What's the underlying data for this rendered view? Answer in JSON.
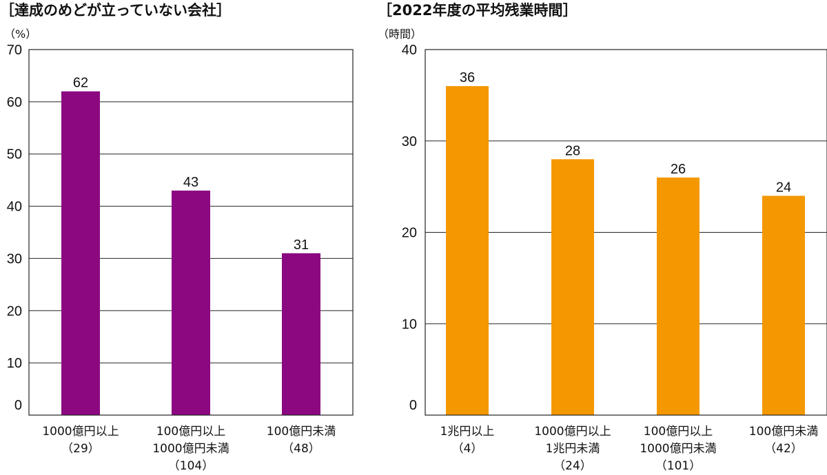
{
  "chart_data": [
    {
      "type": "bar",
      "title": "［達成のめどが立っていない会社］",
      "unit": "（%）",
      "ylim": [
        0,
        70
      ],
      "yticks": [
        0,
        10,
        20,
        30,
        40,
        50,
        60,
        70
      ],
      "grid": true,
      "color": "#8c0880",
      "categories": [
        [
          "1000億円以上",
          "（29）"
        ],
        [
          "100億円以上",
          "1000億円未満",
          "（104）"
        ],
        [
          "100億円未満",
          "（48）"
        ]
      ],
      "values": [
        62,
        43,
        31
      ]
    },
    {
      "type": "bar",
      "title": "［2022年度の平均残業時間］",
      "unit": "（時間）",
      "ylim": [
        0,
        40
      ],
      "yticks": [
        0,
        10,
        20,
        30,
        40
      ],
      "grid": true,
      "color": "#f39800",
      "categories": [
        [
          "1兆円以上",
          "（4）"
        ],
        [
          "1000億円以上",
          "1兆円未満",
          "（24）"
        ],
        [
          "100億円以上",
          "1000億円未満",
          "（101）"
        ],
        [
          "100億円未満",
          "（42）"
        ]
      ],
      "values": [
        36,
        28,
        26,
        24
      ]
    }
  ]
}
